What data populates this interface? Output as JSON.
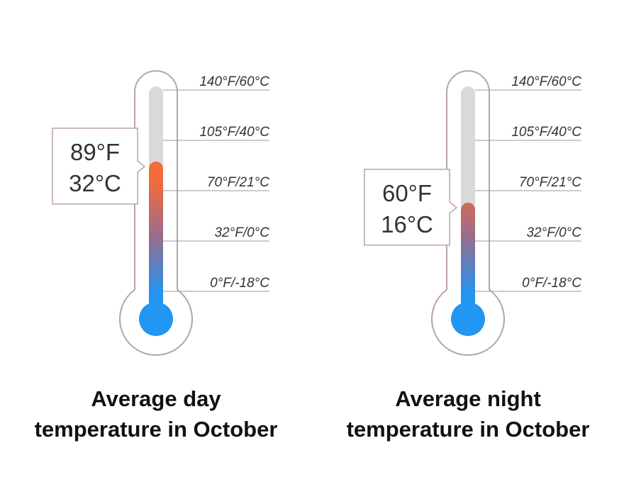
{
  "scale_labels": [
    "140°F/60°C",
    "105°F/40°C",
    "70°F/21°C",
    "32°F/0°C",
    "0°F/-18°C"
  ],
  "scale_celsius": [
    60,
    40,
    21,
    0,
    -18
  ],
  "colors": {
    "outline": "#b9a3a3",
    "track": "#d9d9d9",
    "tick_line": "#999999",
    "bulb": "#2196f3",
    "hot": "#f26b3a",
    "mid": "#9e6b8a",
    "cold": "#2196f3",
    "callout_border": "#b9a3a3",
    "text": "#333333"
  },
  "thermometers": [
    {
      "reading": {
        "fahrenheit": "89°F",
        "celsius": "32°C"
      },
      "value_celsius": 32,
      "caption": {
        "line1": "Average day",
        "line2": "temperature in October"
      }
    },
    {
      "reading": {
        "fahrenheit": "60°F",
        "celsius": "16°C"
      },
      "value_celsius": 16,
      "caption": {
        "line1": "Average night",
        "line2": "temperature in October"
      }
    }
  ]
}
